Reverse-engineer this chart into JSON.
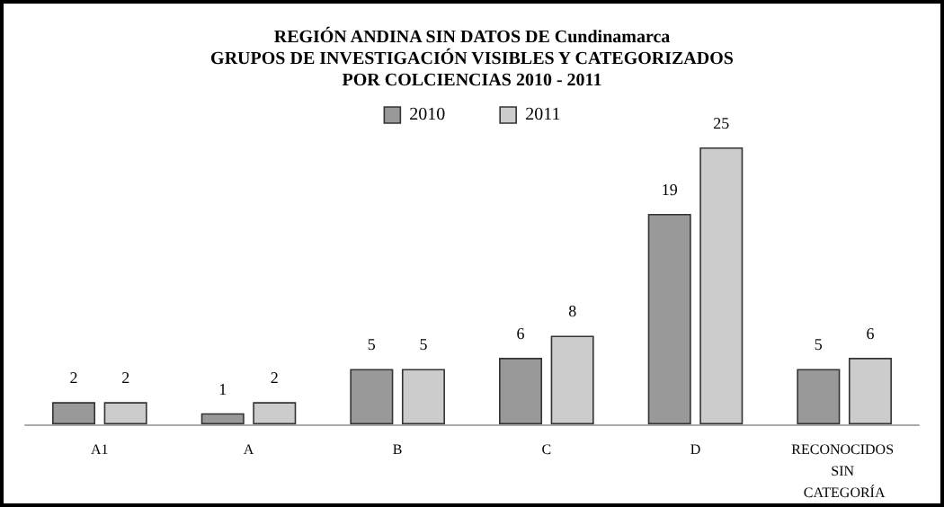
{
  "chart_data": {
    "type": "bar",
    "title": "REGIÓN ANDINA SIN DATOS DE Cundinamarca\nGRUPOS DE INVESTIGACIÓN VISIBLES Y CATEGORIZADOS\nPOR COLCIENCIAS 2010 - 2011",
    "categories": [
      "A1",
      "A",
      "B",
      "C",
      "D",
      "RECONOCIDOS SIN CATEGORÍA"
    ],
    "series": [
      {
        "name": "2010",
        "color": "#999999",
        "values": [
          2,
          1,
          5,
          6,
          19,
          5
        ]
      },
      {
        "name": "2011",
        "color": "#cccccc",
        "values": [
          2,
          2,
          5,
          8,
          25,
          6
        ]
      }
    ],
    "data_labels": true,
    "legend": "top"
  }
}
